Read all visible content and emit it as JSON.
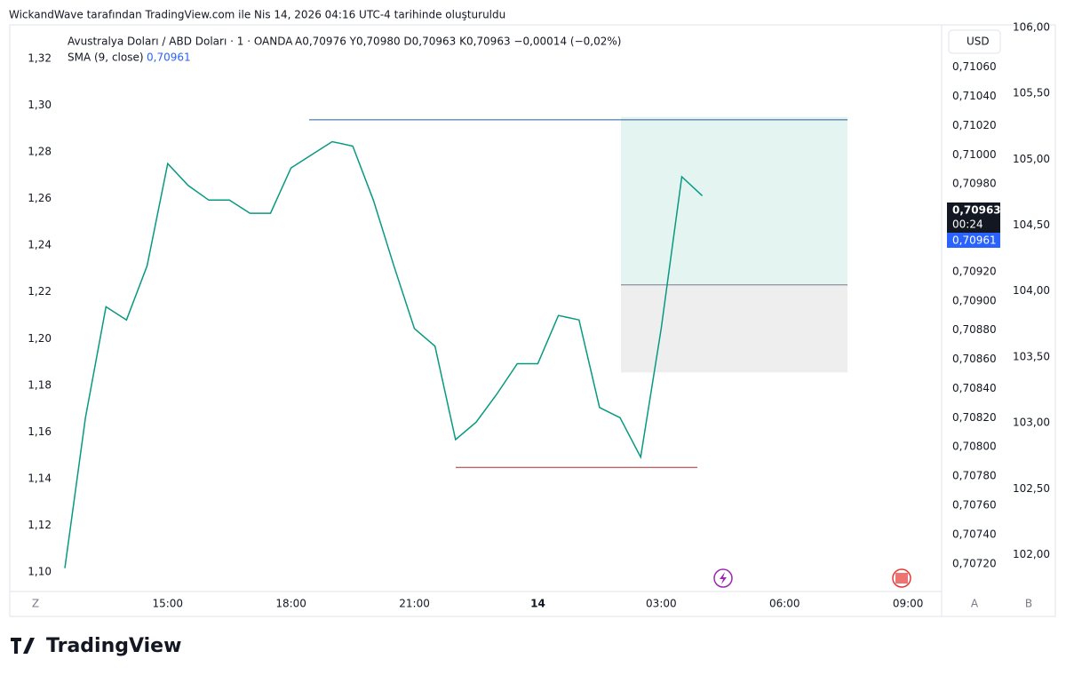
{
  "header": {
    "caption": "WickandWave tarafından TradingView.com ile Nis 14, 2026 04:16 UTC-4 tarihinde oluşturuldu",
    "symbol": "Avustralya Doları / ABD Doları · 1 · OANDA",
    "ohlc": "A0,70976 Y0,70980 D0,70963 K0,70963 −0,00014 (−0,02%)",
    "indicator": "SMA (9, close)",
    "indicator_value": "0,70961",
    "currency_button": "USD",
    "brand": "TradingView"
  },
  "price_labels": {
    "last": "0,70963",
    "countdown": "00:24",
    "sma": "0,70961"
  },
  "axis_buttons": {
    "zoom": "Z",
    "auto": "A",
    "scale": "B"
  },
  "chart_data": {
    "type": "line",
    "categories": [
      null,
      null,
      null,
      null,
      null,
      "15:00",
      null,
      null,
      null,
      null,
      null,
      "18:00",
      null,
      null,
      null,
      null,
      null,
      "21:00",
      null,
      null,
      null,
      null,
      null,
      "14",
      null,
      null,
      null,
      null,
      null,
      "03:00",
      null,
      null,
      null,
      null,
      null,
      "06:00",
      null,
      null,
      null,
      null,
      null,
      "09:00",
      null
    ],
    "series": [
      {
        "name": "AUD/USD",
        "color": "#089981",
        "values": [
          0.70717,
          0.7082,
          0.70896,
          0.70887,
          0.70924,
          0.70994,
          0.70979,
          0.70969,
          0.70969,
          0.7096,
          0.7096,
          0.70991,
          0.71,
          0.71009,
          0.71006,
          0.70969,
          0.70924,
          0.70881,
          0.70869,
          0.70805,
          0.70817,
          0.70836,
          0.70857,
          0.70857,
          0.7089,
          0.70887,
          0.70827,
          0.7082,
          0.70793,
          0.70881,
          0.70985,
          0.70972,
          null,
          null,
          null,
          null,
          null,
          null,
          null,
          null,
          null,
          null,
          null
        ]
      }
    ],
    "ylim": [
      0.70701,
      0.71089
    ],
    "yticks": [
      {
        "value": 0.7072,
        "label": "0,70720"
      },
      {
        "value": 0.7074,
        "label": "0,70740"
      },
      {
        "value": 0.7076,
        "label": "0,70760"
      },
      {
        "value": 0.7078,
        "label": "0,70780"
      },
      {
        "value": 0.708,
        "label": "0,70800"
      },
      {
        "value": 0.7082,
        "label": "0,70820"
      },
      {
        "value": 0.7084,
        "label": "0,70840"
      },
      {
        "value": 0.7086,
        "label": "0,70860"
      },
      {
        "value": 0.7088,
        "label": "0,70880"
      },
      {
        "value": 0.709,
        "label": "0,70900"
      },
      {
        "value": 0.7092,
        "label": "0,70920"
      },
      {
        "value": 0.7098,
        "label": "0,70980"
      },
      {
        "value": 0.71,
        "label": "0,71000"
      },
      {
        "value": 0.7102,
        "label": "0,71020"
      },
      {
        "value": 0.7104,
        "label": "0,71040"
      },
      {
        "value": 0.7106,
        "label": "0,71060"
      }
    ],
    "y2lim": [
      1.0916,
      1.3345
    ],
    "y2ticks": [
      {
        "value": 1.1,
        "label": "1,10"
      },
      {
        "value": 1.12,
        "label": "1,12"
      },
      {
        "value": 1.14,
        "label": "1,14"
      },
      {
        "value": 1.16,
        "label": "1,16"
      },
      {
        "value": 1.18,
        "label": "1,18"
      },
      {
        "value": 1.2,
        "label": "1,20"
      },
      {
        "value": 1.22,
        "label": "1,22"
      },
      {
        "value": 1.24,
        "label": "1,24"
      },
      {
        "value": 1.26,
        "label": "1,26"
      },
      {
        "value": 1.28,
        "label": "1,28"
      },
      {
        "value": 1.3,
        "label": "1,30"
      },
      {
        "value": 1.32,
        "label": "1,32"
      }
    ],
    "y3lim": [
      101.72,
      106.02
    ],
    "y3ticks": [
      {
        "value": 102,
        "label": "102,00"
      },
      {
        "value": 102.5,
        "label": "102,50"
      },
      {
        "value": 103,
        "label": "103,00"
      },
      {
        "value": 103.5,
        "label": "103,50"
      },
      {
        "value": 104,
        "label": "104,00"
      },
      {
        "value": 104.5,
        "label": "104,50"
      },
      {
        "value": 105,
        "label": "105,00"
      },
      {
        "value": 105.5,
        "label": "105,50"
      },
      {
        "value": 106,
        "label": "106,00"
      }
    ],
    "resistance": 0.71024,
    "support": 0.70786,
    "position": {
      "target": 0.71026,
      "entry": 0.70911,
      "stop": 0.70851
    },
    "grid": false
  }
}
